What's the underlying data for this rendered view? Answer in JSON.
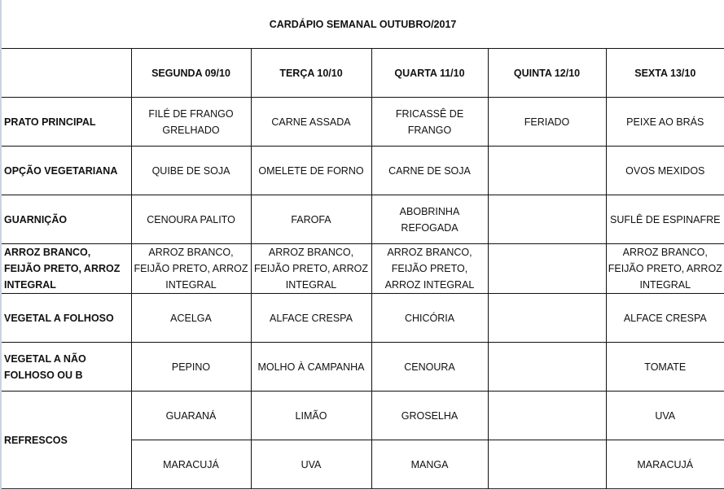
{
  "title": "CARDÁPIO SEMANAL OUTUBRO/2017",
  "headers": [
    "",
    "SEGUNDA   09/10",
    "TERÇA 10/10",
    "QUARTA 11/10",
    "QUINTA 12/10",
    "SEXTA 13/10"
  ],
  "rows": [
    {
      "label": "PRATO PRINCIPAL",
      "cells": [
        "FILÉ DE FRANGO GRELHADO",
        "CARNE ASSADA",
        "FRICASSÊ DE FRANGO",
        "FERIADO",
        "PEIXE AO BRÁS"
      ]
    },
    {
      "label": "OPÇÃO VEGETARIANA",
      "cells": [
        "QUIBE DE SOJA",
        "OMELETE DE FORNO",
        "CARNE DE SOJA",
        "",
        "OVOS MEXIDOS"
      ]
    },
    {
      "label": "GUARNIÇÃO",
      "cells": [
        "CENOURA PALITO",
        "FAROFA",
        "ABOBRINHA REFOGADA",
        "",
        "SUFLÊ DE ESPINAFRE"
      ]
    },
    {
      "label": "ARROZ BRANCO, FEIJÃO PRETO, ARROZ INTEGRAL",
      "cells": [
        "ARROZ BRANCO, FEIJÃO PRETO, ARROZ INTEGRAL",
        "ARROZ BRANCO, FEIJÃO PRETO, ARROZ INTEGRAL",
        "ARROZ BRANCO, FEIJÃO PRETO, ARROZ INTEGRAL",
        "",
        "ARROZ BRANCO, FEIJÃO PRETO, ARROZ INTEGRAL"
      ]
    },
    {
      "label": "VEGETAL A FOLHOSO",
      "cells": [
        "ACELGA",
        "ALFACE CRESPA",
        "CHICÓRIA",
        "",
        "ALFACE CRESPA"
      ]
    },
    {
      "label": "VEGETAL A NÃO FOLHOSO OU B",
      "cells": [
        "PEPINO",
        "MOLHO À CAMPANHA",
        "CENOURA",
        "",
        "TOMATE"
      ]
    }
  ],
  "refrescos": {
    "label": "REFRESCOS",
    "rows": [
      [
        "GUARANÁ",
        "LIMÃO",
        "GROSELHA",
        "",
        "UVA"
      ],
      [
        "MARACUJÁ",
        "UVA",
        "MANGA",
        "",
        "MARACUJÁ"
      ]
    ]
  }
}
